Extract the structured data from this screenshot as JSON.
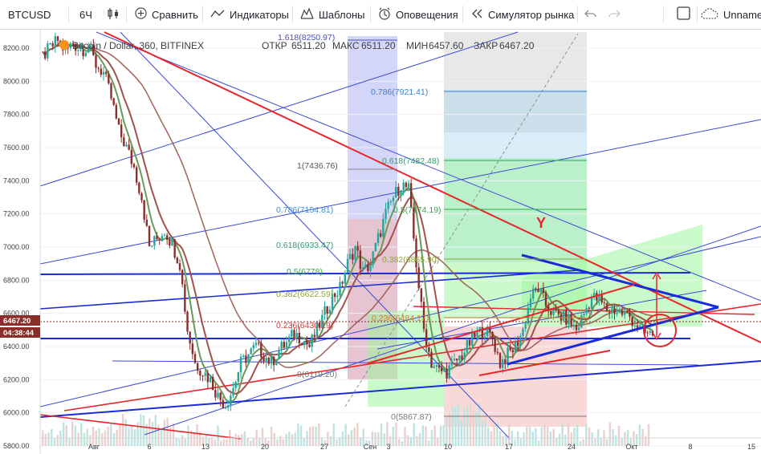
{
  "toolbar": {
    "symbol": "BTCUSD",
    "interval": "6Ч",
    "compare": "Сравнить",
    "indicators": "Индикаторы",
    "templates": "Шаблоны",
    "alerts": "Оповещения",
    "replay": "Симулятор рынка",
    "layout_name": "Unnamed"
  },
  "legend": {
    "title": "Bitcoin / Dollar, 360, BITFINEX",
    "open_label": "ОТКР",
    "open": "6511.20",
    "high_label": "МАКС",
    "high": "6511.20",
    "low_label": "МИН",
    "low": "6457.60",
    "close_label": "ЗАКР",
    "close": "6467.20"
  },
  "price_badges": {
    "last_price": "6467.20",
    "countdown": "04:38:44"
  },
  "annotation_letter": "Y",
  "colors": {
    "up": "#26a69a",
    "down": "#8b2e2a",
    "accent_red": "#e8262a",
    "accent_blue": "#1a2bd8",
    "thin_blue": "#3a49d6",
    "green_zone": "#9cf59c",
    "blue_zone": "#aeb4f2",
    "grey_zone": "#bdbdbd",
    "pink_zone": "#f4b8b8"
  },
  "chart_data": {
    "type": "candlestick",
    "symbol": "Bitcoin / Dollar, 360, BITFINEX",
    "ylim": [
      5750,
      8350
    ],
    "y_ticks": [
      "8200.00",
      "8000.00",
      "7800.00",
      "7600.00",
      "7400.00",
      "7200.00",
      "7000.00",
      "6800.00",
      "6600.00",
      "6400.00",
      "6200.00",
      "6000.00",
      "5800.00"
    ],
    "x_ticks": [
      "Авг",
      "6",
      "13",
      "20",
      "27",
      "Сен",
      "3",
      "10",
      "17",
      "24",
      "Окт",
      "8",
      "15"
    ],
    "last": {
      "open": 6511.2,
      "high": 6511.2,
      "low": 6457.6,
      "close": 6467.2
    },
    "series": [
      {
        "name": "price_path",
        "x": [
          0,
          1,
          2,
          3,
          4,
          5,
          6,
          7,
          8,
          9,
          10,
          11,
          12,
          13,
          14,
          15,
          16,
          17,
          18,
          19,
          20,
          21,
          22,
          23,
          24,
          25,
          26,
          27,
          28,
          29,
          30,
          31,
          32,
          33,
          34,
          35,
          36,
          37,
          38,
          39,
          40,
          41,
          42,
          43,
          44,
          45,
          46,
          47,
          48,
          49,
          50,
          51,
          52,
          53,
          54,
          55,
          56,
          57,
          58,
          59,
          60,
          61,
          62,
          63,
          64,
          65,
          66,
          67,
          68,
          69,
          70,
          71,
          72,
          73,
          74,
          75,
          76,
          77,
          78,
          79,
          80
        ],
        "values": [
          8150,
          8200,
          8250,
          8180,
          8230,
          8190,
          8210,
          8100,
          8050,
          7900,
          7700,
          7600,
          7480,
          7300,
          7000,
          7050,
          7100,
          7020,
          6900,
          6500,
          6300,
          6250,
          6200,
          6100,
          6050,
          6150,
          6300,
          6350,
          6400,
          6350,
          6300,
          6380,
          6420,
          6480,
          6450,
          6400,
          6500,
          6600,
          6700,
          6750,
          6900,
          7000,
          6850,
          6900,
          7050,
          7200,
          7300,
          7380,
          7350,
          6900,
          6500,
          6300,
          6250,
          6250,
          6300,
          6350,
          6420,
          6480,
          6500,
          6450,
          6300,
          6350,
          6400,
          6500,
          6700,
          6750,
          6650,
          6600,
          6580,
          6560,
          6500,
          6600,
          6700,
          6680,
          6620,
          6620,
          6600,
          6580,
          6520,
          6480,
          6467
        ]
      }
    ],
    "fibonacci_retracement_1": {
      "levels": [
        {
          "ratio": "1.618",
          "value": "8250.97"
        },
        {
          "ratio": "1",
          "value": "7436.76"
        },
        {
          "ratio": "0.786",
          "value": "7154.81"
        },
        {
          "ratio": "0.618",
          "value": "6933.47"
        },
        {
          "ratio": "0.5",
          "value": "6778"
        },
        {
          "ratio": "0.382",
          "value": "6622.59"
        },
        {
          "ratio": "0.236",
          "value": "6430.19"
        },
        {
          "ratio": "0",
          "value": "6119.20"
        }
      ]
    },
    "fibonacci_retracement_2": {
      "levels": [
        {
          "ratio": "0.786",
          "value": "7921.41"
        },
        {
          "ratio": "0.618",
          "value": "7482.48"
        },
        {
          "ratio": "0.5",
          "value": "7174.19"
        },
        {
          "ratio": "0.382",
          "value": "6865.90"
        },
        {
          "ratio": "0.236",
          "value": "6484.17"
        },
        {
          "ratio": "0",
          "value": "5867.87"
        }
      ]
    }
  }
}
